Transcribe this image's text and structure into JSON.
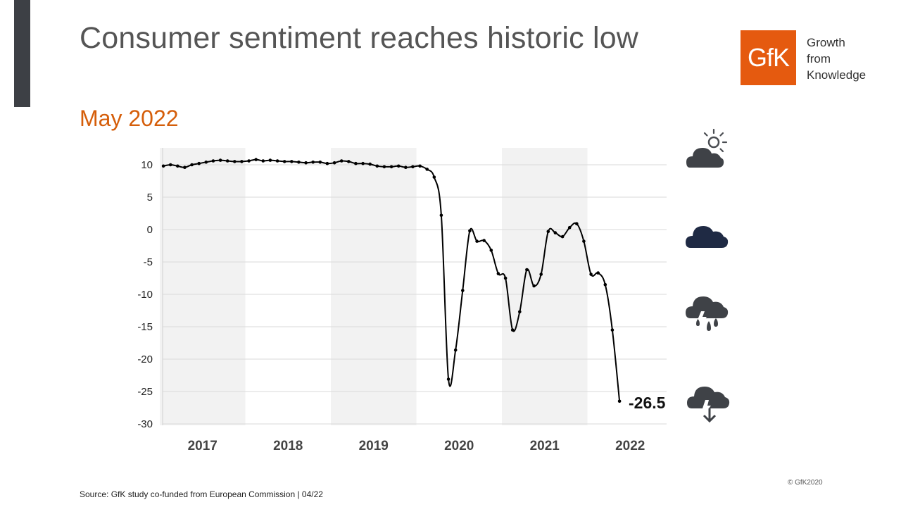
{
  "header": {
    "title": "Consumer sentiment reaches historic low",
    "subtitle": "May 2022"
  },
  "logo": {
    "text": "GfK",
    "tagline": [
      "Growth",
      "from",
      "Knowledge"
    ],
    "color": "#e55a0f"
  },
  "chart_data": {
    "type": "line",
    "title": "",
    "xlabel": "",
    "ylabel": "",
    "ylim": [
      -30,
      12
    ],
    "yticks": [
      10,
      5,
      0,
      -5,
      -10,
      -15,
      -20,
      -25,
      -30
    ],
    "year_labels": [
      "2017",
      "2018",
      "2019",
      "2020",
      "2021",
      "2022"
    ],
    "shaded_years": [
      "2017",
      "2019",
      "2021"
    ],
    "grid": true,
    "smoothed": true,
    "series": [
      {
        "values": [
          9.8,
          10.0,
          9.8,
          9.6,
          10.0,
          10.2,
          10.4,
          10.6,
          10.7,
          10.6,
          10.5,
          10.5,
          10.6,
          10.8,
          10.6,
          10.7,
          10.6,
          10.5,
          10.5,
          10.4,
          10.3,
          10.4,
          10.4,
          10.2,
          10.3,
          10.6,
          10.5,
          10.2,
          10.2,
          10.1,
          9.8,
          9.7,
          9.7,
          9.8,
          9.6,
          9.7,
          9.8,
          9.3,
          8.1,
          2.2,
          -23.1,
          -18.6,
          -9.4,
          -0.2,
          -1.8,
          -1.7,
          -3.2,
          -6.8,
          -7.5,
          -15.5,
          -12.7,
          -6.2,
          -8.7,
          -6.9,
          -0.3,
          -0.5,
          -1.1,
          0.3,
          0.9,
          -1.8,
          -6.9,
          -6.7,
          -8.5,
          -15.5,
          -26.5
        ]
      }
    ],
    "last_value_label": "-26.5",
    "colors": {
      "line": "#000000",
      "shade": "#f2f2f2",
      "grid": "#d9d9d9"
    }
  },
  "weather_icons": [
    "sun-cloud-icon",
    "dark-cloud-icon",
    "rain-cloud-icon",
    "cloud-down-arrow-icon"
  ],
  "footer": {
    "source": "Source: GfK study co-funded from European Commission | 04/22",
    "copyright": "© GfK2020"
  }
}
